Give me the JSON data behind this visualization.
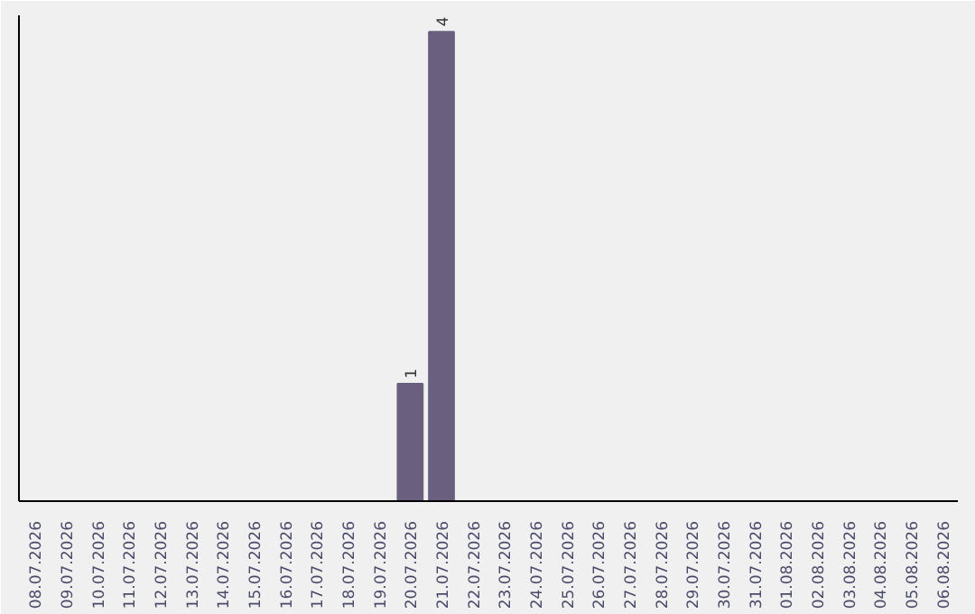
{
  "chart_data": {
    "type": "bar",
    "categories": [
      "08.07.2026",
      "09.07.2026",
      "10.07.2026",
      "11.07.2026",
      "12.07.2026",
      "13.07.2026",
      "14.07.2026",
      "15.07.2026",
      "16.07.2026",
      "17.07.2026",
      "18.07.2026",
      "19.07.2026",
      "20.07.2026",
      "21.07.2026",
      "22.07.2026",
      "23.07.2026",
      "24.07.2026",
      "25.07.2026",
      "26.07.2026",
      "27.07.2026",
      "28.07.2026",
      "29.07.2026",
      "30.07.2026",
      "31.07.2026",
      "01.08.2026",
      "02.08.2026",
      "03.08.2026",
      "04.08.2026",
      "05.08.2026",
      "06.08.2026"
    ],
    "values": [
      null,
      null,
      null,
      null,
      null,
      null,
      null,
      null,
      null,
      null,
      null,
      null,
      1,
      4,
      null,
      null,
      null,
      null,
      null,
      null,
      null,
      null,
      null,
      null,
      null,
      null,
      null,
      null,
      null,
      null
    ],
    "value_labels": [
      null,
      null,
      null,
      null,
      null,
      null,
      null,
      null,
      null,
      null,
      null,
      null,
      "1",
      "4",
      null,
      null,
      null,
      null,
      null,
      null,
      null,
      null,
      null,
      null,
      null,
      null,
      null,
      null,
      null,
      null
    ],
    "color": "#6b5f80",
    "tick_labels": "x"
  }
}
